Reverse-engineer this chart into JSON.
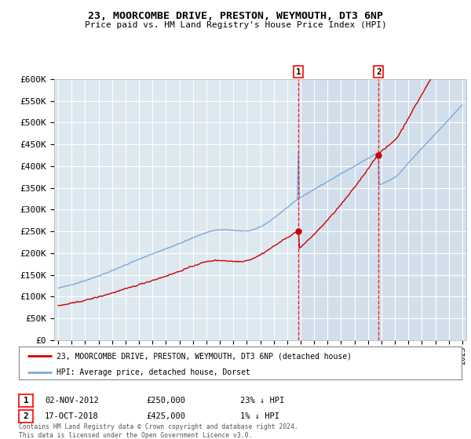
{
  "title": "23, MOORCOMBE DRIVE, PRESTON, WEYMOUTH, DT3 6NP",
  "subtitle": "Price paid vs. HM Land Registry's House Price Index (HPI)",
  "ylim": [
    0,
    600000
  ],
  "yticks": [
    0,
    50000,
    100000,
    150000,
    200000,
    250000,
    300000,
    350000,
    400000,
    450000,
    500000,
    550000,
    600000
  ],
  "ytick_labels": [
    "£0",
    "£50K",
    "£100K",
    "£150K",
    "£200K",
    "£250K",
    "£300K",
    "£350K",
    "£400K",
    "£450K",
    "£500K",
    "£550K",
    "£600K"
  ],
  "hpi_color": "#7aaadd",
  "price_color": "#cc0000",
  "marker1_year": 2012.83,
  "marker2_year": 2018.79,
  "marker1_price": 250000,
  "marker2_price": 425000,
  "legend_address": "23, MOORCOMBE DRIVE, PRESTON, WEYMOUTH, DT3 6NP (detached house)",
  "legend_hpi": "HPI: Average price, detached house, Dorset",
  "footer": "Contains HM Land Registry data © Crown copyright and database right 2024.\nThis data is licensed under the Open Government Licence v3.0.",
  "background_plot": "#dde8f0",
  "background_fig": "#ffffff",
  "grid_color": "#ffffff",
  "span_color": "#c8d8e8",
  "x_start_year": 1995,
  "x_end_year": 2025
}
